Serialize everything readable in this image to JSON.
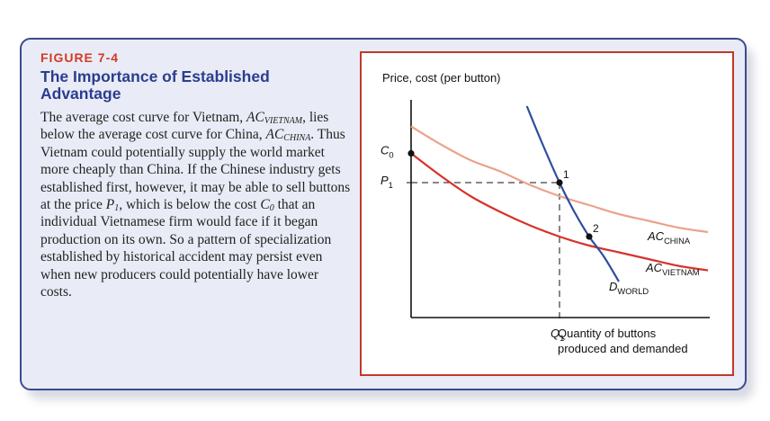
{
  "figure": {
    "label": "FIGURE 7-4",
    "title": "The Importance of Established Advantage",
    "caption": {
      "t1": "The average cost curve for Vietnam, ",
      "ac": "AC",
      "sub_vietnam": "VIETNAM",
      "t2": ", lies below the average cost curve for China, ",
      "sub_china": "CHINA",
      "t3": ". Thus Vietnam could potentially supply the world market more cheaply than China. If the Chinese industry gets established first, however, it may be able to sell buttons at the price ",
      "p": "P",
      "one": "1",
      "t4": ", which is below the cost ",
      "c": "C",
      "zero": "0",
      "t5": " that an individual Vietnamese firm would face if it began production on its own. So a pattern of specialization established by historical accident may persist even when new producers could potentially have lower costs."
    }
  },
  "chart_data": {
    "type": "line",
    "ylabel": "Price, cost (per button)",
    "xlabel": [
      "Quantity of buttons",
      "produced and demanded"
    ],
    "xlim": [
      0,
      10
    ],
    "ylim": [
      0,
      10
    ],
    "series": [
      {
        "key": "ac_china",
        "name": "AC",
        "sub": "CHINA",
        "color": "#eba389",
        "x": [
          0,
          1,
          2,
          3,
          4,
          5,
          6,
          7,
          8,
          9,
          10
        ],
        "y": [
          8.5,
          7.7,
          7.0,
          6.5,
          5.9,
          5.4,
          5.0,
          4.6,
          4.3,
          4.0,
          3.8
        ]
      },
      {
        "key": "ac_vietnam",
        "name": "AC",
        "sub": "VIETNAM",
        "color": "#d7322a",
        "x": [
          0,
          1,
          2,
          3,
          4,
          5,
          6,
          7,
          8,
          9,
          10
        ],
        "y": [
          7.3,
          6.3,
          5.4,
          4.7,
          4.1,
          3.6,
          3.2,
          2.9,
          2.6,
          2.3,
          2.1
        ]
      },
      {
        "key": "d_world",
        "name": "D",
        "sub": "WORLD",
        "color": "#2d4e9e",
        "x": [
          3.9,
          4.4,
          5.0,
          5.5,
          6.0,
          6.5,
          7.0
        ],
        "y": [
          9.4,
          7.8,
          6.0,
          4.7,
          3.6,
          2.7,
          1.6
        ]
      }
    ],
    "points": [
      {
        "label": "1",
        "x": 5.0,
        "y": 6.0
      },
      {
        "label": "2",
        "x": 6.0,
        "y": 3.6
      }
    ],
    "markers": {
      "c0": {
        "main": "C",
        "sub": "0",
        "y": 7.3
      },
      "p1": {
        "main": "P",
        "sub": "1",
        "y": 6.0
      },
      "q1": {
        "main": "Q",
        "sub": "1",
        "x": 5.0
      }
    }
  }
}
